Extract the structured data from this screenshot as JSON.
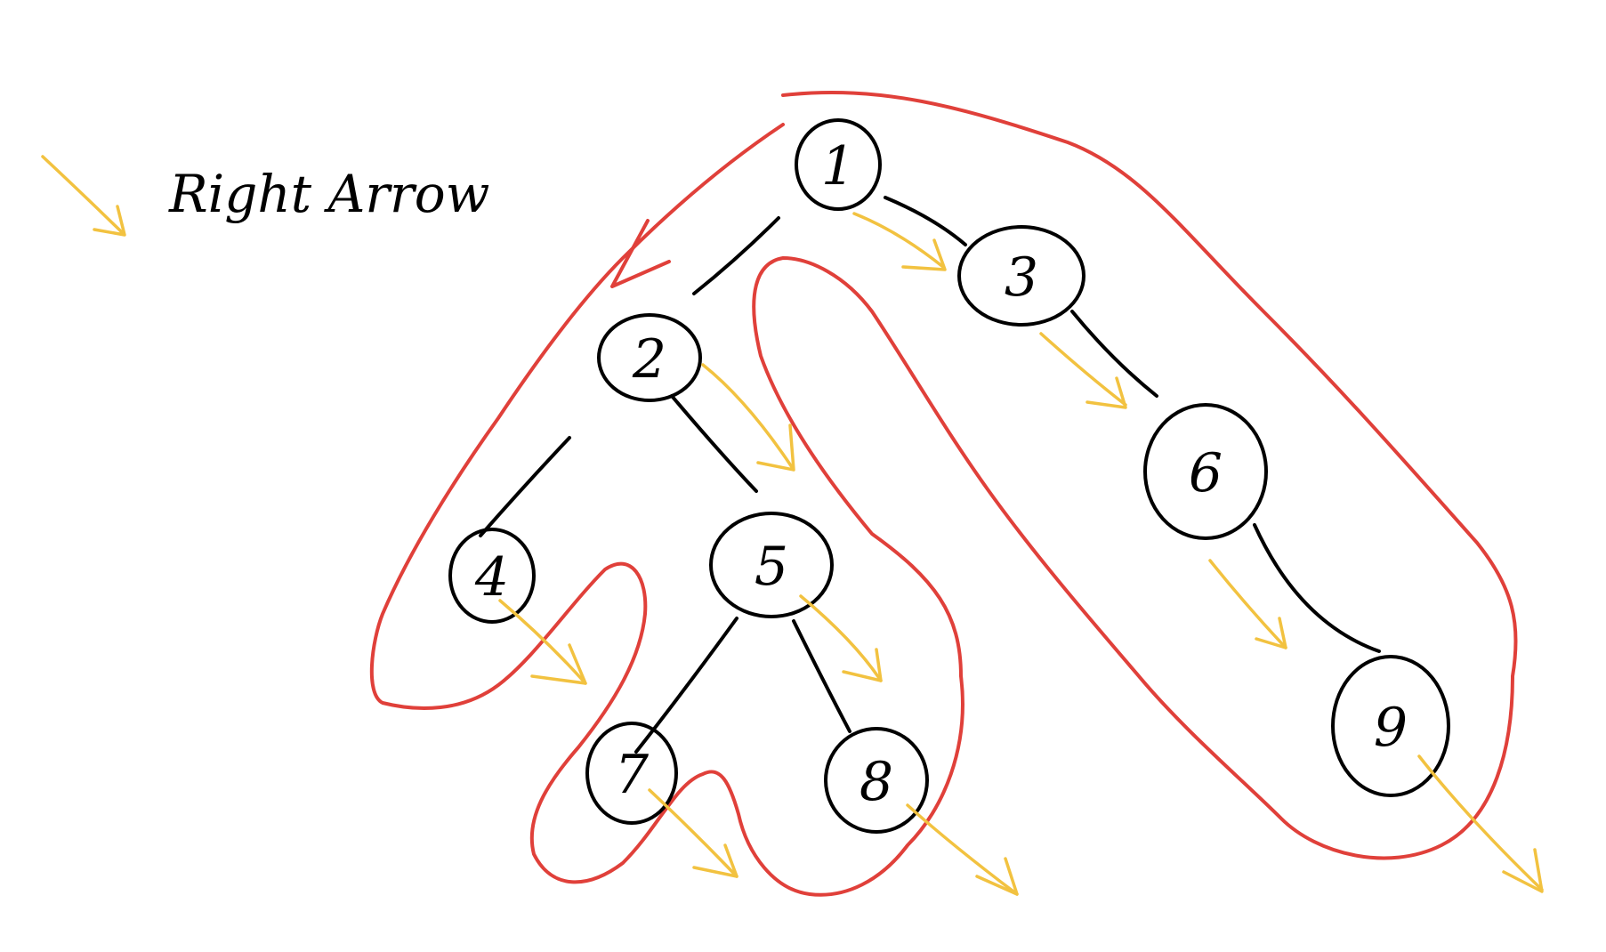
{
  "legend": {
    "text": "Right Arrow",
    "arrow_icon": "right-arrow-icon"
  },
  "tree": {
    "nodes": [
      {
        "id": "n1",
        "label": "1"
      },
      {
        "id": "n2",
        "label": "2"
      },
      {
        "id": "n3",
        "label": "3"
      },
      {
        "id": "n4",
        "label": "4"
      },
      {
        "id": "n5",
        "label": "5"
      },
      {
        "id": "n6",
        "label": "6"
      },
      {
        "id": "n7",
        "label": "7"
      },
      {
        "id": "n8",
        "label": "8"
      },
      {
        "id": "n9",
        "label": "9"
      }
    ],
    "edges": [
      [
        "n1",
        "n2"
      ],
      [
        "n1",
        "n3"
      ],
      [
        "n2",
        "n4"
      ],
      [
        "n2",
        "n5"
      ],
      [
        "n3",
        "n6"
      ],
      [
        "n5",
        "n7"
      ],
      [
        "n5",
        "n8"
      ],
      [
        "n6",
        "n9"
      ]
    ]
  },
  "colors": {
    "outline": "#e0403a",
    "arrow": "#f2c240",
    "ink": "#000000"
  }
}
